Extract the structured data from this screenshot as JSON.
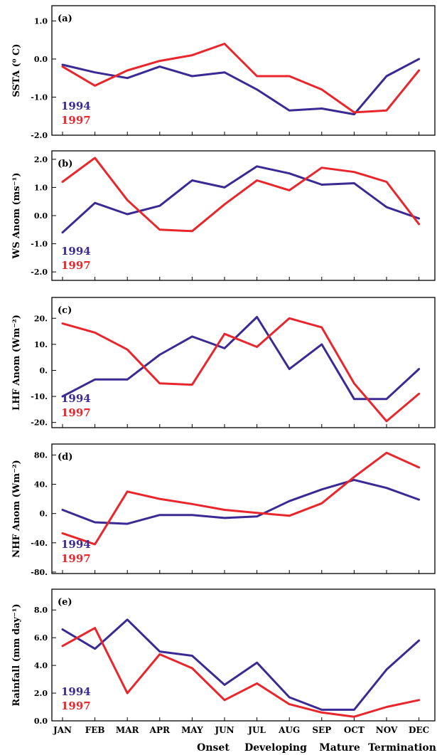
{
  "colors": {
    "series_1994": "#3a2a93",
    "series_1997": "#e8262b",
    "axis": "#000000"
  },
  "phases": [
    "Onset",
    "Developing",
    "Mature",
    "Termination"
  ],
  "chart_data": [
    {
      "type": "line",
      "panel_label": "(a)",
      "ylabel": "SSTA (⁰ C)",
      "ylim": [
        -2.0,
        1.4
      ],
      "yticks": [
        1.0,
        0.0,
        -1.0,
        -2.0
      ],
      "ytick_labels": [
        "1.0",
        "0.0",
        "-1.0",
        "-2.0"
      ],
      "categories": [
        "JAN",
        "FEB",
        "MAR",
        "APR",
        "MAY",
        "JUN",
        "JUL",
        "AUG",
        "SEP",
        "OCT",
        "NOV",
        "DEC"
      ],
      "series": [
        {
          "name": "1994",
          "values": [
            -0.15,
            -0.35,
            -0.5,
            -0.2,
            -0.45,
            -0.35,
            -0.8,
            -1.35,
            -1.3,
            -1.45,
            -0.45,
            -0.0
          ]
        },
        {
          "name": "1997",
          "values": [
            -0.2,
            -0.7,
            -0.3,
            -0.05,
            0.1,
            0.4,
            -0.45,
            -0.45,
            -0.8,
            -1.4,
            -1.35,
            -0.3
          ]
        }
      ]
    },
    {
      "type": "line",
      "panel_label": "(b)",
      "ylabel": "WS Anom (ms⁻¹)",
      "ylim": [
        -2.3,
        2.3
      ],
      "yticks": [
        2.0,
        1.0,
        0.0,
        -1.0,
        -2.0
      ],
      "ytick_labels": [
        "2.0",
        "1.0",
        "0.0",
        "-1.0",
        "-2.0"
      ],
      "categories": [
        "JAN",
        "FEB",
        "MAR",
        "APR",
        "MAY",
        "JUN",
        "JUL",
        "AUG",
        "SEP",
        "OCT",
        "NOV",
        "DEC"
      ],
      "series": [
        {
          "name": "1994",
          "values": [
            -0.6,
            0.45,
            0.05,
            0.35,
            1.25,
            1.0,
            1.75,
            1.5,
            1.1,
            1.15,
            0.3,
            -0.1
          ]
        },
        {
          "name": "1997",
          "values": [
            1.2,
            2.05,
            0.55,
            -0.5,
            -0.55,
            0.4,
            1.25,
            0.9,
            1.7,
            1.55,
            1.2,
            -0.3
          ]
        }
      ]
    },
    {
      "type": "line",
      "panel_label": "(c)",
      "ylabel": "LHF Anom (Wm⁻²)",
      "ylim": [
        -22,
        28
      ],
      "yticks": [
        20,
        10,
        0,
        -10,
        -20
      ],
      "ytick_labels": [
        "20.",
        "10.",
        "0.",
        "-10.",
        "-20."
      ],
      "categories": [
        "JAN",
        "FEB",
        "MAR",
        "APR",
        "MAY",
        "JUN",
        "JUL",
        "AUG",
        "SEP",
        "OCT",
        "NOV",
        "DEC"
      ],
      "series": [
        {
          "name": "1994",
          "values": [
            -10,
            -3.5,
            -3.5,
            6,
            13,
            8.5,
            20.5,
            0.5,
            10,
            -11,
            -11,
            0.5
          ]
        },
        {
          "name": "1997",
          "values": [
            18,
            14.5,
            8,
            -5,
            -5.5,
            14,
            9,
            20,
            16.5,
            -5,
            -19.5,
            -9
          ]
        }
      ]
    },
    {
      "type": "line",
      "panel_label": "(d)",
      "ylabel": "NHF Anom (Wm⁻²)",
      "ylim": [
        -82,
        95
      ],
      "yticks": [
        80,
        40,
        0,
        -40,
        -80
      ],
      "ytick_labels": [
        "80.",
        "40.",
        "0.",
        "-40.",
        "-80."
      ],
      "categories": [
        "JAN",
        "FEB",
        "MAR",
        "APR",
        "MAY",
        "JUN",
        "JUL",
        "AUG",
        "SEP",
        "OCT",
        "NOV",
        "DEC"
      ],
      "series": [
        {
          "name": "1994",
          "values": [
            5,
            -12,
            -14,
            -2,
            -2,
            -6,
            -4,
            17,
            33,
            46,
            35,
            19
          ]
        },
        {
          "name": "1997",
          "values": [
            -27,
            -42,
            30,
            20,
            13,
            5,
            1,
            -3,
            14,
            50,
            83,
            63
          ]
        }
      ]
    },
    {
      "type": "line",
      "panel_label": "(e)",
      "ylabel": "Rainfall (mm day⁻¹)",
      "ylim": [
        0,
        9.5
      ],
      "yticks": [
        8.0,
        6.0,
        4.0,
        2.0,
        0.0
      ],
      "ytick_labels": [
        "8.0",
        "6.0",
        "4.0",
        "2.0",
        "0.0"
      ],
      "categories": [
        "JAN",
        "FEB",
        "MAR",
        "APR",
        "MAY",
        "JUN",
        "JUL",
        "AUG",
        "SEP",
        "OCT",
        "NOV",
        "DEC"
      ],
      "series": [
        {
          "name": "1994",
          "values": [
            6.6,
            5.2,
            7.3,
            5.0,
            4.7,
            2.6,
            4.2,
            1.7,
            0.8,
            0.8,
            3.7,
            5.8
          ]
        },
        {
          "name": "1997",
          "values": [
            5.4,
            6.7,
            2.0,
            4.8,
            3.8,
            1.5,
            2.7,
            1.2,
            0.6,
            0.3,
            1.0,
            1.5
          ]
        }
      ]
    }
  ]
}
